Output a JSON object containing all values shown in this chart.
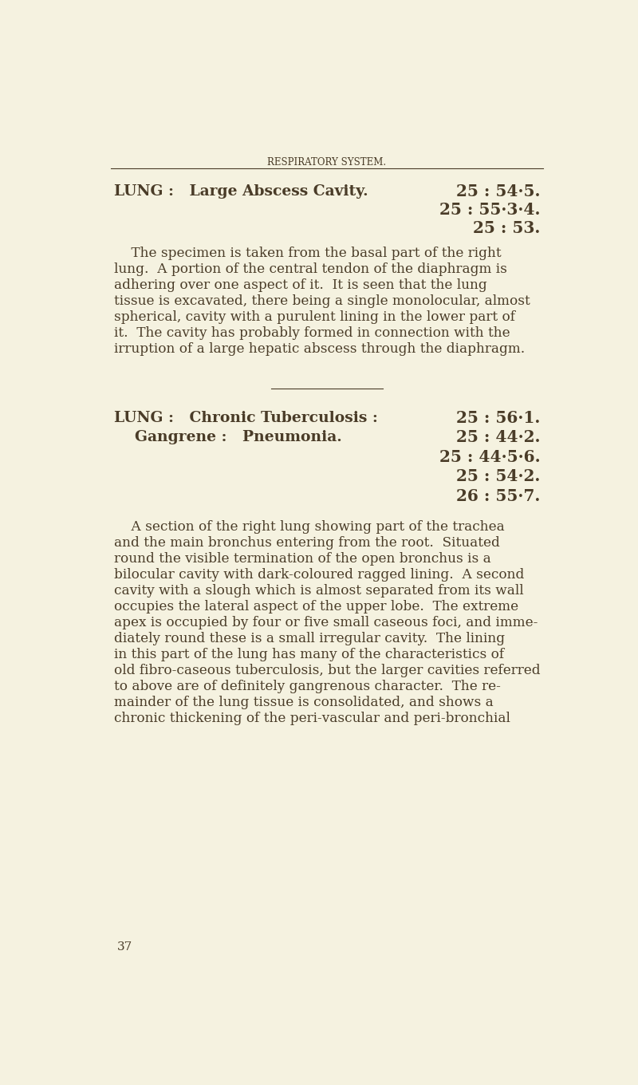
{
  "bg_color": "#f5f2e0",
  "text_color": "#4a3c28",
  "page_header": "RESPIRATORY SYSTEM.",
  "section1_heading_left": "LUNG :   Large Abscess Cavity.",
  "section1_refs": [
    "25 : 54·5.",
    "25 : 55·3·4.",
    "25 : 53."
  ],
  "section2_heading_left1": "LUNG :   Chronic Tuberculosis :",
  "section2_heading_left2": "    Gangrene :   Pneumonia.",
  "section2_refs": [
    "25 : 56·1.",
    "25 : 44·2.",
    "25 : 44·5·6.",
    "25 : 54·2.",
    "26 : 55·7."
  ],
  "page_number": "37",
  "header_fontsize": 8.5,
  "heading_fontsize": 13.5,
  "ref_fontsize": 14.5,
  "body_fontsize": 12.2,
  "page_num_fontsize": 11,
  "body1_lines": [
    "    The specimen is taken from the basal part of the right",
    "lung.  A portion of the central tendon of the diaphragm is",
    "adhering over one aspect of it.  It is seen that the lung",
    "tissue is excavated, there being a single monolocular, almost",
    "spherical, cavity with a purulent lining in the lower part of",
    "it.  The cavity has probably formed in connection with the",
    "irruption of a large hepatic abscess through the diaphragm."
  ],
  "body2_lines": [
    "    A section of the right lung showing part of the trachea",
    "and the main bronchus entering from the root.  Situated",
    "round the visible termination of the open bronchus is a",
    "bilocular cavity with dark-coloured ragged lining.  A second",
    "cavity with a slough which is almost separated from its wall",
    "occupies the lateral aspect of the upper lobe.  The extreme",
    "apex is occupied by four or five small caseous foci, and imme-",
    "diately round these is a small irregular cavity.  The lining",
    "in this part of the lung has many of the characteristics of",
    "old fibro-caseous tuberculosis, but the larger cavities referred",
    "to above are of definitely gangrenous character.  The re-",
    "mainder of the lung tissue is consolidated, and shows a",
    "chronic thickening of the peri-vascular and peri-bronchial"
  ]
}
